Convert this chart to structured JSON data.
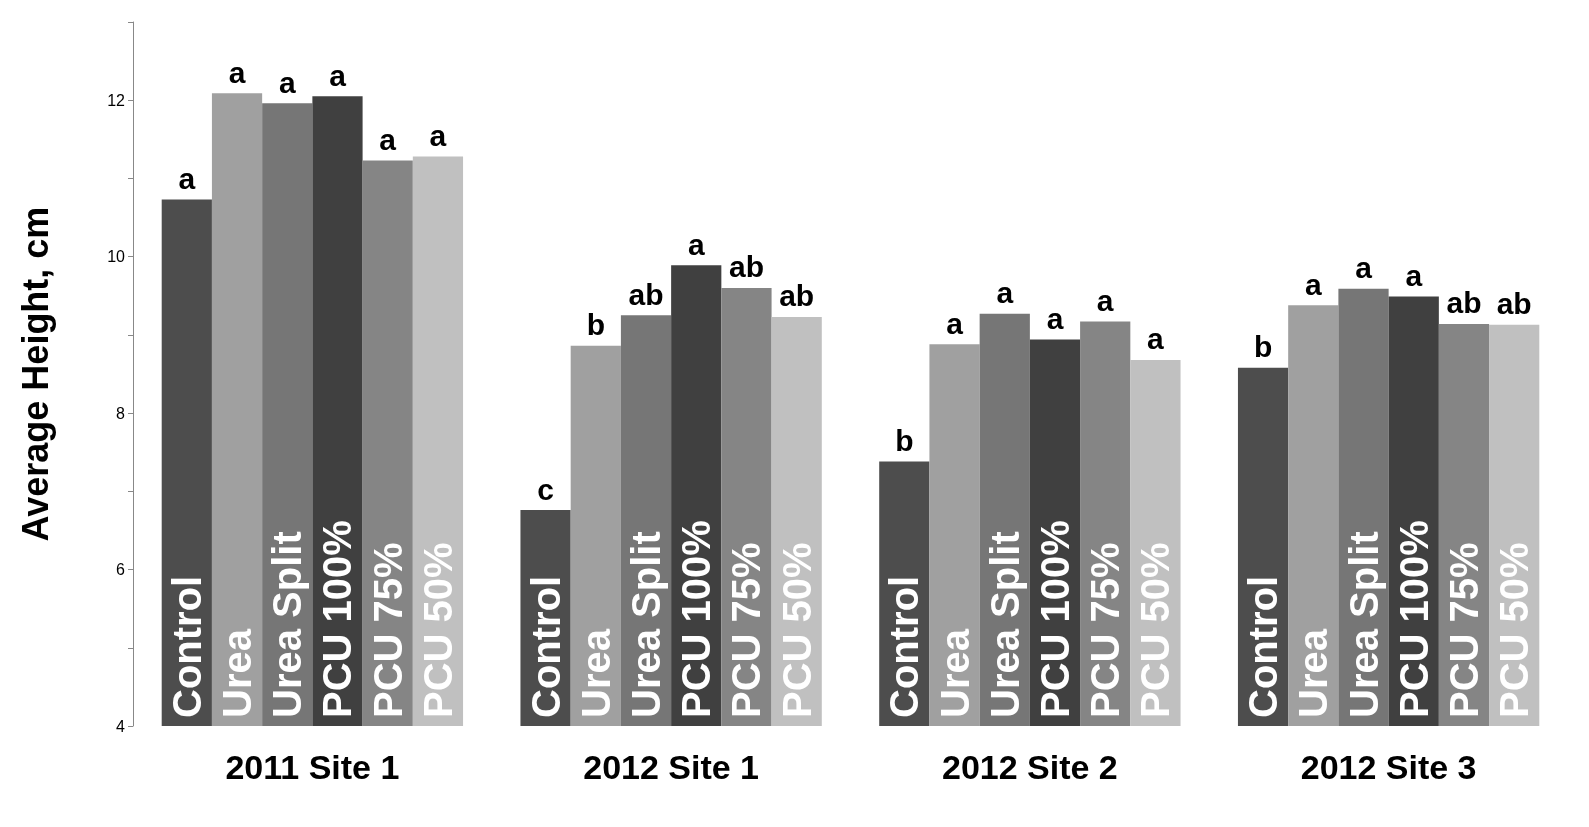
{
  "chart_data": {
    "type": "bar",
    "ylabel": "Average Height, cm",
    "categories": [
      "2011 Site 1",
      "2012 Site 1",
      "2012 Site 2",
      "2012 Site 3"
    ],
    "series": [
      {
        "name": "Control",
        "color": "#4d4d4d",
        "values": [
          10.73,
          6.76,
          7.38,
          8.58
        ],
        "value_labels": [
          "a",
          "c",
          "b",
          "b"
        ]
      },
      {
        "name": "Urea",
        "color": "#a0a0a0",
        "values": [
          12.09,
          8.86,
          8.88,
          9.38
        ],
        "value_labels": [
          "a",
          "b",
          "a",
          "a"
        ]
      },
      {
        "name": "Urea Split",
        "color": "#767676",
        "values": [
          11.96,
          9.25,
          9.27,
          9.59
        ],
        "value_labels": [
          "a",
          "ab",
          "a",
          "a"
        ]
      },
      {
        "name": "PCU 100%",
        "color": "#404040",
        "values": [
          12.05,
          9.89,
          8.94,
          9.49
        ],
        "value_labels": [
          "a",
          "a",
          "a",
          "a"
        ]
      },
      {
        "name": "PCU 75%",
        "color": "#858585",
        "values": [
          11.23,
          9.6,
          9.17,
          9.14
        ],
        "value_labels": [
          "a",
          "ab",
          "a",
          "ab"
        ]
      },
      {
        "name": "PCU 50%",
        "color": "#c0c0c0",
        "values": [
          11.28,
          9.23,
          8.68,
          9.13
        ],
        "value_labels": [
          "a",
          "ab",
          "a",
          "ab"
        ]
      }
    ],
    "ylim": [
      4,
      13
    ],
    "yticks": [
      4,
      {
        "value": 5,
        "label": null
      },
      6,
      {
        "value": 7,
        "label": null
      },
      8,
      {
        "value": 9,
        "label": null
      },
      10,
      {
        "value": 11,
        "label": null
      },
      12,
      {
        "value": 13,
        "label": null
      }
    ],
    "grid": false,
    "legend": false
  }
}
